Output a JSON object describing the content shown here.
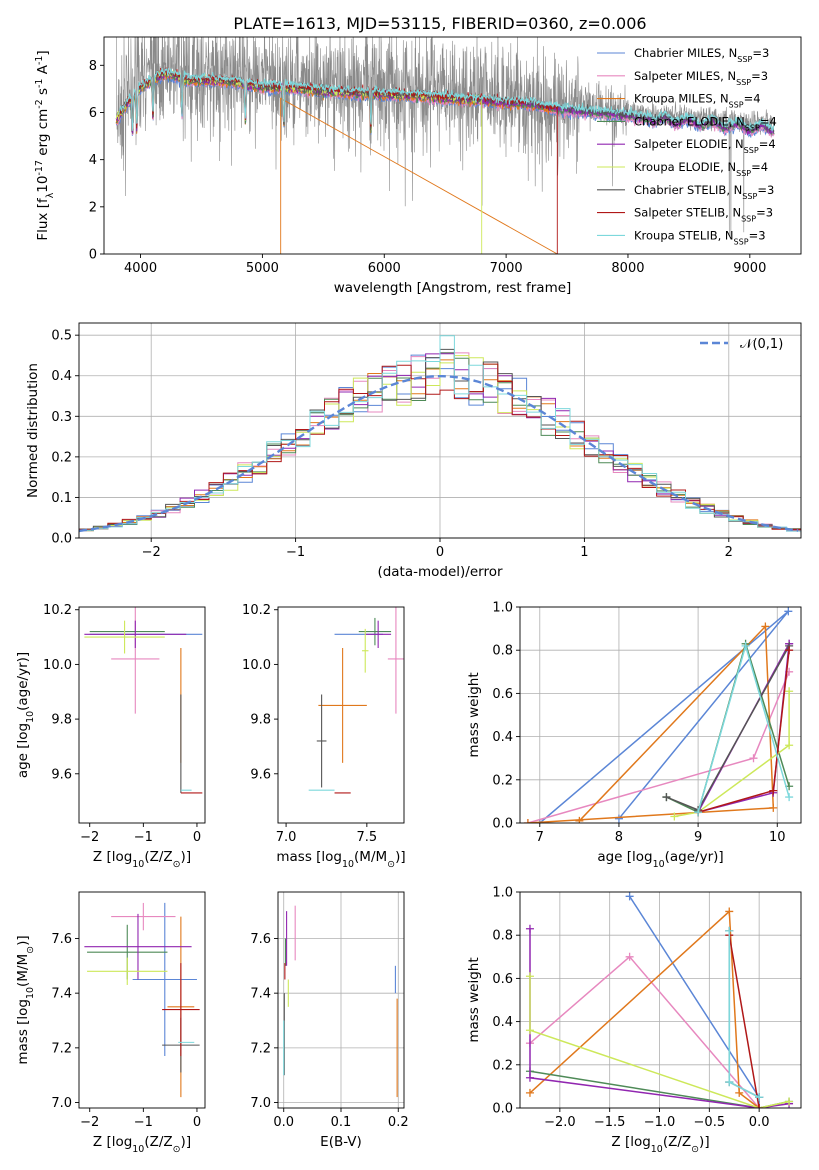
{
  "figure": {
    "title": "PLATE=1613, MJD=53115, FIBERID=0360, z=0.006"
  },
  "colors": {
    "Chabrier MILES": "#5b86d6",
    "Salpeter MILES": "#e788bf",
    "Kroupa MILES": "#e0781c",
    "Chabrier ELODIE": "#4e8a57",
    "Salpeter ELODIE": "#9126b0",
    "Kroupa ELODIE": "#cde85a",
    "Chabrier STELIB": "#555555",
    "Salpeter STELIB": "#b01818",
    "Kroupa STELIB": "#7dd8dc",
    "normal": "#5b86d6"
  },
  "legend_entries": [
    "Chabrier MILES, N$_{SSP}$=3",
    "Salpeter MILES, N$_{SSP}$=3",
    "Kroupa MILES, N$_{SSP}$=4",
    "Chabrier ELODIE, N$_{SSP}$=4",
    "Salpeter ELODIE, N$_{SSP}$=4",
    "Kroupa ELODIE, N$_{SSP}$=4",
    "Chabrier STELIB, N$_{SSP}$=3",
    "Salpeter STELIB, N$_{SSP}$=3",
    "Kroupa STELIB, N$_{SSP}$=3"
  ],
  "chart_data": [
    {
      "id": "spectrum",
      "type": "line",
      "xlabel": "wavelength [Angstrom, rest frame]",
      "ylabel": "Flux [f$_\\lambda$10$^{-17}$ erg cm$^{-2}$ s$^{-1}$ A$^{-1}$]",
      "xlim": [
        3700,
        9420
      ],
      "ylim": [
        0,
        9.2
      ],
      "xticks": [
        4000,
        5000,
        6000,
        7000,
        8000,
        9000
      ],
      "yticks": [
        0,
        2,
        4,
        6,
        8
      ],
      "grid": false,
      "legend_position": "upper right",
      "data_trend": {
        "x": [
          3800,
          3900,
          4000,
          4200,
          4400,
          4600,
          4800,
          5000,
          5200,
          5400,
          5600,
          5800,
          6000,
          6200,
          6400,
          6600,
          6800,
          7000,
          7200,
          7400,
          7600,
          7800,
          8000,
          8200,
          8400,
          8600,
          8800,
          9000,
          9200
        ],
        "y": [
          5.9,
          6.7,
          7.3,
          7.9,
          7.6,
          7.6,
          7.5,
          7.3,
          7.3,
          7.2,
          7.1,
          7.05,
          7.0,
          6.95,
          6.9,
          6.8,
          6.75,
          6.65,
          6.6,
          6.4,
          6.3,
          6.2,
          6.1,
          5.95,
          5.9,
          5.8,
          5.7,
          5.6,
          5.55
        ]
      },
      "data_noise_sigma_blue": 1.3,
      "data_noise_sigma_red": 0.35,
      "model_absorption_features": [
        3934,
        3969,
        4102,
        4340,
        4861,
        5175,
        5890
      ]
    },
    {
      "id": "residual_hist",
      "type": "area",
      "xlabel": "(data-model)/error",
      "ylabel": "Normed distribution",
      "xlim": [
        -2.5,
        2.5
      ],
      "ylim": [
        0,
        0.53
      ],
      "xticks": [
        -2,
        -1,
        0,
        1,
        2
      ],
      "yticks": [
        0.0,
        0.1,
        0.2,
        0.3,
        0.4,
        0.5
      ],
      "grid": true,
      "legend": "$\\mathcal{N}(0,1)$",
      "legend_position": "upper right",
      "bin_width": 0.1
    },
    {
      "id": "age_vs_Z",
      "type": "scatter",
      "xlabel": "Z [log$_{10}$(Z/Z$_\\odot$)]",
      "ylabel": "age  [log$_{10}$(age/yr)]",
      "xlim": [
        -2.2,
        0.15
      ],
      "ylim": [
        9.42,
        10.21
      ],
      "xticks": [
        -2,
        -1,
        0
      ],
      "yticks": [
        9.6,
        9.8,
        10.0,
        10.2
      ],
      "grid": false,
      "series": [
        {
          "name": "Chabrier MILES",
          "x": -0.95,
          "xerr": 1.05,
          "y": 10.11,
          "yerr": 0.0
        },
        {
          "name": "Salpeter MILES",
          "x": -1.15,
          "xerr": 0.45,
          "y": 10.02,
          "yerr": 0.2
        },
        {
          "name": "Kroupa MILES",
          "x": -0.3,
          "xerr": 0.0,
          "y": 9.85,
          "yerr": 0.21
        },
        {
          "name": "Chabrier ELODIE",
          "x": -1.3,
          "xerr": 0.7,
          "y": 10.12,
          "yerr": 0.0
        },
        {
          "name": "Salpeter ELODIE",
          "x": -1.15,
          "xerr": 0.95,
          "y": 10.11,
          "yerr": 0.05
        },
        {
          "name": "Kroupa ELODIE",
          "x": -1.35,
          "xerr": 0.75,
          "y": 10.1,
          "yerr": 0.06
        },
        {
          "name": "Chabrier STELIB",
          "x": -0.3,
          "xerr": 0.0,
          "y": 9.71,
          "yerr": 0.18
        },
        {
          "name": "Salpeter STELIB",
          "x": -0.1,
          "xerr": 0.2,
          "y": 9.53,
          "yerr": 0.0
        },
        {
          "name": "Kroupa STELIB",
          "x": -0.2,
          "xerr": 0.1,
          "y": 9.54,
          "yerr": 0.0
        }
      ]
    },
    {
      "id": "age_vs_mass",
      "type": "scatter",
      "xlabel": "mass [log$_{10}$(M/M$_\\odot$)]",
      "ylabel": "",
      "xlim": [
        6.95,
        7.73
      ],
      "ylim": [
        9.42,
        10.21
      ],
      "xticks": [
        7.0,
        7.5
      ],
      "yticks": [
        9.6,
        9.8,
        10.0,
        10.2
      ],
      "grid": false,
      "series": [
        {
          "name": "Chabrier MILES",
          "x": 7.45,
          "xerr": 0.15,
          "y": 10.11,
          "yerr": 0.0
        },
        {
          "name": "Salpeter MILES",
          "x": 7.68,
          "xerr": 0.05,
          "y": 10.02,
          "yerr": 0.2
        },
        {
          "name": "Kroupa MILES",
          "x": 7.35,
          "xerr": 0.15,
          "y": 9.85,
          "yerr": 0.21
        },
        {
          "name": "Chabrier ELODIE",
          "x": 7.55,
          "xerr": 0.1,
          "y": 10.12,
          "yerr": 0.05
        },
        {
          "name": "Salpeter ELODIE",
          "x": 7.57,
          "xerr": 0.08,
          "y": 10.11,
          "yerr": 0.05
        },
        {
          "name": "Kroupa ELODIE",
          "x": 7.49,
          "xerr": 0.02,
          "y": 10.05,
          "yerr": 0.08
        },
        {
          "name": "Chabrier STELIB",
          "x": 7.22,
          "xerr": 0.03,
          "y": 9.72,
          "yerr": 0.17
        },
        {
          "name": "Salpeter STELIB",
          "x": 7.35,
          "xerr": 0.05,
          "y": 9.53,
          "yerr": 0.0
        },
        {
          "name": "Kroupa STELIB",
          "x": 7.22,
          "xerr": 0.08,
          "y": 9.54,
          "yerr": 0.0
        }
      ]
    },
    {
      "id": "weight_vs_age",
      "type": "line",
      "xlabel": "age  [log$_{10}$(age/yr)]",
      "ylabel": "mass weight",
      "xlim": [
        6.75,
        10.3
      ],
      "ylim": [
        0,
        1.0
      ],
      "xticks": [
        7,
        8,
        9,
        10
      ],
      "yticks": [
        0.0,
        0.2,
        0.4,
        0.6,
        0.8,
        1.0
      ],
      "grid": true,
      "series": [
        {
          "name": "Chabrier MILES",
          "x": [
            8.0,
            10.14,
            7.0
          ],
          "y": [
            0.02,
            0.98,
            0.0
          ]
        },
        {
          "name": "Salpeter MILES",
          "x": [
            6.85,
            9.7,
            10.15
          ],
          "y": [
            0.0,
            0.3,
            0.7
          ]
        },
        {
          "name": "Kroupa MILES",
          "x": [
            7.5,
            9.85,
            9.95,
            6.85
          ],
          "y": [
            0.01,
            0.91,
            0.07,
            0.0
          ]
        },
        {
          "name": "Chabrier ELODIE",
          "x": [
            8.6,
            9.0,
            9.6,
            10.15
          ],
          "y": [
            0.12,
            0.05,
            0.83,
            0.17
          ]
        },
        {
          "name": "Salpeter ELODIE",
          "x": [
            10.15,
            9.95,
            9.0,
            10.15
          ],
          "y": [
            0.83,
            0.14,
            0.05,
            0.83
          ]
        },
        {
          "name": "Kroupa ELODIE",
          "x": [
            8.7,
            9.0,
            10.15,
            10.15
          ],
          "y": [
            0.03,
            0.05,
            0.36,
            0.61
          ]
        },
        {
          "name": "Chabrier STELIB",
          "x": [
            8.6,
            9.0,
            10.15
          ],
          "y": [
            0.12,
            0.06,
            0.82
          ]
        },
        {
          "name": "Salpeter STELIB",
          "x": [
            9.0,
            9.95,
            10.15
          ],
          "y": [
            0.05,
            0.15,
            0.8
          ]
        },
        {
          "name": "Kroupa STELIB",
          "x": [
            9.0,
            9.6,
            10.15
          ],
          "y": [
            0.05,
            0.82,
            0.12
          ]
        }
      ]
    },
    {
      "id": "mass_vs_Z",
      "type": "scatter",
      "xlabel": "Z [log$_{10}$(Z/Z$_\\odot$)]",
      "ylabel": "mass [log$_{10}$(M/M$_\\odot$)]",
      "xlim": [
        -2.2,
        0.15
      ],
      "ylim": [
        6.98,
        7.77
      ],
      "xticks": [
        -2,
        -1,
        0
      ],
      "yticks": [
        7.0,
        7.2,
        7.4,
        7.6
      ],
      "grid": false,
      "series": [
        {
          "name": "Chabrier MILES",
          "x": -0.6,
          "xerr": 0.6,
          "y": 7.45,
          "yerr": 0.28
        },
        {
          "name": "Salpeter MILES",
          "x": -1.0,
          "xerr": 0.6,
          "y": 7.68,
          "yerr": 0.05
        },
        {
          "name": "Kroupa MILES",
          "x": -0.3,
          "xerr": 0.25,
          "y": 7.35,
          "yerr": 0.33
        },
        {
          "name": "Chabrier ELODIE",
          "x": -1.3,
          "xerr": 0.75,
          "y": 7.55,
          "yerr": 0.1
        },
        {
          "name": "Salpeter ELODIE",
          "x": -1.1,
          "xerr": 1.0,
          "y": 7.57,
          "yerr": 0.12
        },
        {
          "name": "Kroupa ELODIE",
          "x": -1.3,
          "xerr": 0.75,
          "y": 7.48,
          "yerr": 0.05
        },
        {
          "name": "Chabrier STELIB",
          "x": -0.3,
          "xerr": 0.35,
          "y": 7.21,
          "yerr": 0.1
        },
        {
          "name": "Salpeter STELIB",
          "x": -0.3,
          "xerr": 0.35,
          "y": 7.34,
          "yerr": 0.17
        },
        {
          "name": "Kroupa STELIB",
          "x": -0.2,
          "xerr": 0.15,
          "y": 7.22,
          "yerr": 0.0
        }
      ]
    },
    {
      "id": "mass_vs_ebv",
      "type": "scatter",
      "xlabel": "E(B-V)",
      "ylabel": "",
      "xlim": [
        -0.01,
        0.21
      ],
      "ylim": [
        6.98,
        7.77
      ],
      "xticks": [
        0.0,
        0.1,
        0.2
      ],
      "yticks": [
        7.0,
        7.2,
        7.4,
        7.6
      ],
      "grid": true,
      "series": [
        {
          "name": "Chabrier MILES",
          "x": 0.195,
          "y": 7.45,
          "yerr": 0.05
        },
        {
          "name": "Salpeter MILES",
          "x": 0.02,
          "y": 7.62,
          "yerr": 0.1
        },
        {
          "name": "Kroupa MILES",
          "x": 0.198,
          "y": 7.2,
          "yerr": 0.18
        },
        {
          "name": "Chabrier ELODIE",
          "x": 0.003,
          "y": 7.55,
          "yerr": 0.05
        },
        {
          "name": "Salpeter ELODIE",
          "x": 0.005,
          "y": 7.6,
          "yerr": 0.1
        },
        {
          "name": "Kroupa ELODIE",
          "x": 0.008,
          "y": 7.4,
          "yerr": 0.05
        },
        {
          "name": "Chabrier STELIB",
          "x": 0.001,
          "y": 7.25,
          "yerr": 0.15
        },
        {
          "name": "Salpeter STELIB",
          "x": 0.002,
          "y": 7.48,
          "yerr": 0.03
        },
        {
          "name": "Kroupa STELIB",
          "x": 0.0,
          "y": 7.2,
          "yerr": 0.1
        }
      ]
    },
    {
      "id": "weight_vs_Z",
      "type": "line",
      "xlabel": "Z [log$_{10}$(Z/Z$_\\odot$)]",
      "ylabel": "mass weight",
      "xlim": [
        -2.4,
        0.42
      ],
      "ylim": [
        0,
        1.0
      ],
      "xticks": [
        -2.0,
        -1.5,
        -1.0,
        -0.5,
        0.0
      ],
      "yticks": [
        0.0,
        0.2,
        0.4,
        0.6,
        0.8,
        1.0
      ],
      "grid": true,
      "series": [
        {
          "name": "Chabrier MILES",
          "x": [
            -1.3,
            0.0,
            0.0
          ],
          "y": [
            0.98,
            0.05,
            0.0
          ]
        },
        {
          "name": "Salpeter MILES",
          "x": [
            -2.3,
            -1.3,
            0.0
          ],
          "y": [
            0.3,
            0.7,
            0.0
          ]
        },
        {
          "name": "Kroupa MILES",
          "x": [
            -2.3,
            -0.3,
            -0.2,
            0.0
          ],
          "y": [
            0.07,
            0.91,
            0.07,
            0.0
          ]
        },
        {
          "name": "Chabrier ELODIE",
          "x": [
            -2.3,
            0.0,
            0.3
          ],
          "y": [
            0.17,
            0.0,
            0.03
          ]
        },
        {
          "name": "Salpeter ELODIE",
          "x": [
            -2.3,
            -2.3,
            0.0,
            0.3
          ],
          "y": [
            0.83,
            0.14,
            0.0,
            0.02
          ]
        },
        {
          "name": "Kroupa ELODIE",
          "x": [
            -2.3,
            -2.3,
            0.0,
            0.3
          ],
          "y": [
            0.61,
            0.36,
            0.0,
            0.03
          ]
        },
        {
          "name": "Chabrier STELIB",
          "x": [
            -0.3,
            -0.3,
            0.0
          ],
          "y": [
            0.82,
            0.12,
            0.05
          ]
        },
        {
          "name": "Salpeter STELIB",
          "x": [
            -0.3,
            0.0
          ],
          "y": [
            0.8,
            0.0
          ]
        },
        {
          "name": "Kroupa STELIB",
          "x": [
            -0.3,
            -0.3,
            0.0
          ],
          "y": [
            0.82,
            0.12,
            0.05
          ]
        }
      ]
    }
  ]
}
